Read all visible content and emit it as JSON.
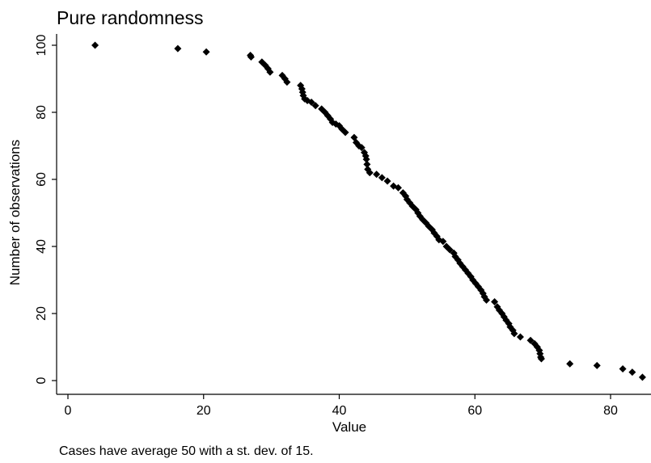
{
  "chart_data": {
    "type": "scatter",
    "title": "Pure randomness",
    "xlabel": "Value",
    "ylabel": "Number of observations",
    "note": "Cases have average 50 with a st. dev. of 15.",
    "xlim": [
      -2,
      85
    ],
    "ylim": [
      -3,
      103
    ],
    "xticks": [
      0,
      20,
      40,
      60,
      80
    ],
    "yticks": [
      0,
      20,
      40,
      60,
      80,
      100
    ],
    "grid": false,
    "marker": "diamond",
    "marker_color": "#000000",
    "points": [
      [
        4.0,
        100
      ],
      [
        16.2,
        99
      ],
      [
        20.4,
        98
      ],
      [
        26.9,
        97
      ],
      [
        27.0,
        96.5
      ],
      [
        28.6,
        95
      ],
      [
        29.1,
        94
      ],
      [
        29.5,
        93
      ],
      [
        29.8,
        92
      ],
      [
        31.6,
        91
      ],
      [
        32.0,
        90
      ],
      [
        32.3,
        89
      ],
      [
        34.3,
        88
      ],
      [
        34.5,
        87
      ],
      [
        34.6,
        86
      ],
      [
        34.7,
        85
      ],
      [
        34.9,
        84
      ],
      [
        35.3,
        83.5
      ],
      [
        35.9,
        83
      ],
      [
        36.5,
        82
      ],
      [
        37.4,
        81
      ],
      [
        37.9,
        80
      ],
      [
        38.3,
        79
      ],
      [
        38.7,
        78
      ],
      [
        39.0,
        77
      ],
      [
        39.5,
        76.5
      ],
      [
        40.0,
        76
      ],
      [
        40.4,
        75
      ],
      [
        40.9,
        74
      ],
      [
        42.2,
        72.5
      ],
      [
        42.5,
        71
      ],
      [
        42.9,
        70
      ],
      [
        43.3,
        69.5
      ],
      [
        43.7,
        68
      ],
      [
        43.9,
        67
      ],
      [
        44.0,
        66
      ],
      [
        44.1,
        64.5
      ],
      [
        44.2,
        63
      ],
      [
        44.5,
        62
      ],
      [
        45.5,
        61.5
      ],
      [
        46.3,
        60.5
      ],
      [
        47.1,
        59.5
      ],
      [
        48.0,
        58
      ],
      [
        48.7,
        57.5
      ],
      [
        49.4,
        56
      ],
      [
        49.8,
        55
      ],
      [
        50.0,
        54
      ],
      [
        50.4,
        53
      ],
      [
        50.8,
        52
      ],
      [
        51.3,
        51
      ],
      [
        51.6,
        50
      ],
      [
        51.9,
        49
      ],
      [
        52.3,
        48
      ],
      [
        52.8,
        47
      ],
      [
        53.2,
        46
      ],
      [
        53.7,
        45
      ],
      [
        54.0,
        44
      ],
      [
        54.4,
        43
      ],
      [
        54.7,
        42
      ],
      [
        55.3,
        41.5
      ],
      [
        55.8,
        40
      ],
      [
        56.3,
        39
      ],
      [
        56.9,
        38
      ],
      [
        57.1,
        37
      ],
      [
        57.5,
        36
      ],
      [
        57.8,
        35
      ],
      [
        58.2,
        34
      ],
      [
        58.6,
        33
      ],
      [
        59.0,
        32
      ],
      [
        59.4,
        31
      ],
      [
        59.7,
        30
      ],
      [
        60.1,
        29
      ],
      [
        60.5,
        28
      ],
      [
        60.9,
        27
      ],
      [
        61.2,
        26
      ],
      [
        61.4,
        25
      ],
      [
        61.7,
        24
      ],
      [
        62.9,
        23.5
      ],
      [
        63.3,
        22
      ],
      [
        63.6,
        21
      ],
      [
        64.0,
        20
      ],
      [
        64.3,
        19
      ],
      [
        64.6,
        18
      ],
      [
        65.0,
        17
      ],
      [
        65.2,
        16
      ],
      [
        65.6,
        15
      ],
      [
        65.8,
        14
      ],
      [
        66.7,
        13
      ],
      [
        68.2,
        12
      ],
      [
        68.8,
        11
      ],
      [
        69.2,
        10
      ],
      [
        69.5,
        9
      ],
      [
        69.6,
        8
      ],
      [
        69.7,
        7
      ],
      [
        69.8,
        6.5
      ],
      [
        74.0,
        5
      ],
      [
        78.0,
        4.5
      ],
      [
        81.8,
        3.5
      ],
      [
        83.2,
        2.5
      ],
      [
        84.7,
        1
      ]
    ]
  }
}
